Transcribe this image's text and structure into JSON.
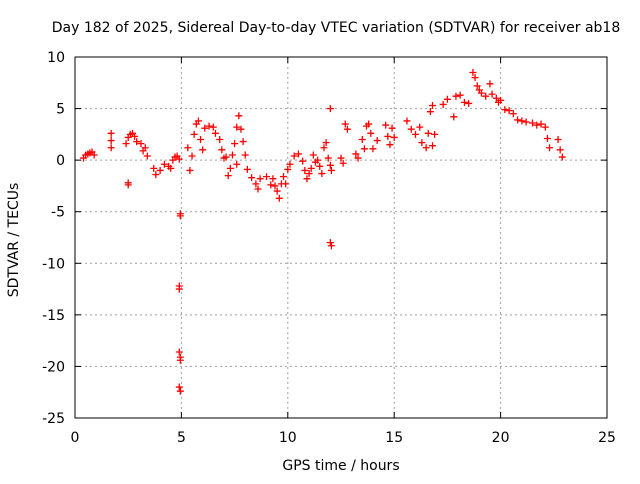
{
  "chart_data": {
    "type": "scatter",
    "title": "Day 182 of 2025, Sidereal Day-to-day VTEC variation (SDTVAR) for receiver ab18",
    "xlabel": "GPS time / hours",
    "ylabel": "SDTVAR / TECUs",
    "xlim": [
      0,
      25
    ],
    "ylim": [
      -25,
      10
    ],
    "xticks": [
      0,
      5,
      10,
      15,
      20,
      25
    ],
    "yticks": [
      10,
      5,
      0,
      -5,
      -10,
      -15,
      -20,
      -25
    ],
    "grid": true,
    "legend": "none",
    "marker": "+",
    "colors": {
      "series": "#ff0000",
      "grid": "#a0a0a0",
      "axes": "#000000"
    },
    "series": [
      {
        "name": "SDTVAR",
        "points": [
          [
            0.4,
            0.2
          ],
          [
            0.5,
            0.5
          ],
          [
            0.6,
            0.6
          ],
          [
            0.7,
            0.7
          ],
          [
            0.8,
            0.8
          ],
          [
            0.9,
            0.5
          ],
          [
            1.7,
            2.6
          ],
          [
            1.7,
            1.9
          ],
          [
            1.7,
            1.2
          ],
          [
            2.4,
            1.6
          ],
          [
            2.5,
            2.2
          ],
          [
            2.6,
            2.5
          ],
          [
            2.7,
            2.6
          ],
          [
            2.8,
            2.3
          ],
          [
            2.9,
            1.8
          ],
          [
            2.5,
            -2.2
          ],
          [
            2.5,
            -2.4
          ],
          [
            3.1,
            1.6
          ],
          [
            3.2,
            0.9
          ],
          [
            3.4,
            0.4
          ],
          [
            3.3,
            1.2
          ],
          [
            3.7,
            -0.8
          ],
          [
            3.8,
            -1.4
          ],
          [
            4.0,
            -1.0
          ],
          [
            4.2,
            -0.4
          ],
          [
            4.4,
            -0.6
          ],
          [
            4.5,
            -0.8
          ],
          [
            4.6,
            0.0
          ],
          [
            4.7,
            0.3
          ],
          [
            4.8,
            0.4
          ],
          [
            4.9,
            0.1
          ],
          [
            4.95,
            -5.2
          ],
          [
            4.95,
            -5.4
          ],
          [
            4.9,
            -12.2
          ],
          [
            4.9,
            -12.5
          ],
          [
            4.9,
            -18.6
          ],
          [
            4.95,
            -19.1
          ],
          [
            4.95,
            -19.4
          ],
          [
            4.9,
            -22.0
          ],
          [
            4.95,
            -22.4
          ],
          [
            5.3,
            1.2
          ],
          [
            5.4,
            -1.0
          ],
          [
            5.5,
            0.4
          ],
          [
            5.6,
            2.5
          ],
          [
            5.7,
            3.5
          ],
          [
            5.8,
            3.8
          ],
          [
            5.9,
            2.0
          ],
          [
            6.0,
            1.0
          ],
          [
            6.1,
            3.1
          ],
          [
            6.3,
            3.3
          ],
          [
            6.5,
            3.2
          ],
          [
            6.6,
            2.6
          ],
          [
            6.8,
            2.0
          ],
          [
            6.9,
            1.0
          ],
          [
            7.0,
            0.2
          ],
          [
            7.1,
            0.3
          ],
          [
            7.2,
            -1.5
          ],
          [
            7.3,
            -0.8
          ],
          [
            7.4,
            0.5
          ],
          [
            7.5,
            1.6
          ],
          [
            7.6,
            3.2
          ],
          [
            7.7,
            4.3
          ],
          [
            7.8,
            3.0
          ],
          [
            7.9,
            1.8
          ],
          [
            8.0,
            0.5
          ],
          [
            7.6,
            -0.4
          ],
          [
            8.1,
            -0.9
          ],
          [
            8.3,
            -1.7
          ],
          [
            8.5,
            -2.3
          ],
          [
            8.6,
            -2.8
          ],
          [
            8.7,
            -1.8
          ],
          [
            9.0,
            -1.6
          ],
          [
            9.2,
            -2.4
          ],
          [
            9.3,
            -1.8
          ],
          [
            9.4,
            -2.5
          ],
          [
            9.5,
            -3.0
          ],
          [
            9.6,
            -3.7
          ],
          [
            9.7,
            -2.3
          ],
          [
            9.8,
            -1.6
          ],
          [
            9.9,
            -2.3
          ],
          [
            10.0,
            -0.9
          ],
          [
            10.1,
            -0.4
          ],
          [
            10.3,
            0.4
          ],
          [
            10.5,
            0.6
          ],
          [
            10.7,
            -0.1
          ],
          [
            10.8,
            -1.0
          ],
          [
            10.9,
            -1.8
          ],
          [
            11.0,
            -1.3
          ],
          [
            11.1,
            -0.8
          ],
          [
            11.2,
            0.5
          ],
          [
            11.3,
            -0.2
          ],
          [
            11.4,
            0.0
          ],
          [
            11.5,
            -0.6
          ],
          [
            11.6,
            -1.3
          ],
          [
            11.7,
            1.2
          ],
          [
            11.8,
            1.7
          ],
          [
            11.9,
            0.2
          ],
          [
            12.0,
            -0.5
          ],
          [
            12.05,
            -1.0
          ],
          [
            12.0,
            5.0
          ],
          [
            12.0,
            -8.0
          ],
          [
            12.05,
            -8.3
          ],
          [
            12.5,
            0.2
          ],
          [
            12.6,
            -0.3
          ],
          [
            12.7,
            3.5
          ],
          [
            12.8,
            3.0
          ],
          [
            13.2,
            0.6
          ],
          [
            13.3,
            0.2
          ],
          [
            13.5,
            2.0
          ],
          [
            13.6,
            1.1
          ],
          [
            13.7,
            3.3
          ],
          [
            13.8,
            3.5
          ],
          [
            13.9,
            2.6
          ],
          [
            14.0,
            1.1
          ],
          [
            14.2,
            1.9
          ],
          [
            14.6,
            3.4
          ],
          [
            14.7,
            2.3
          ],
          [
            14.8,
            1.5
          ],
          [
            14.9,
            3.1
          ],
          [
            15.0,
            2.2
          ],
          [
            15.6,
            3.8
          ],
          [
            15.8,
            3.0
          ],
          [
            16.0,
            2.5
          ],
          [
            16.2,
            3.2
          ],
          [
            16.3,
            1.7
          ],
          [
            16.5,
            1.2
          ],
          [
            16.6,
            2.6
          ],
          [
            16.7,
            4.7
          ],
          [
            16.8,
            5.3
          ],
          [
            16.9,
            2.5
          ],
          [
            16.8,
            1.4
          ],
          [
            17.3,
            5.4
          ],
          [
            17.5,
            5.9
          ],
          [
            17.8,
            4.2
          ],
          [
            17.9,
            6.2
          ],
          [
            18.1,
            6.3
          ],
          [
            18.3,
            5.6
          ],
          [
            18.5,
            5.5
          ],
          [
            18.7,
            8.5
          ],
          [
            18.8,
            8.0
          ],
          [
            18.9,
            7.2
          ],
          [
            19.0,
            6.8
          ],
          [
            19.1,
            6.5
          ],
          [
            19.3,
            6.2
          ],
          [
            19.5,
            7.4
          ],
          [
            19.6,
            6.4
          ],
          [
            19.8,
            6.0
          ],
          [
            19.9,
            5.6
          ],
          [
            20.0,
            5.8
          ],
          [
            20.2,
            4.9
          ],
          [
            20.4,
            4.8
          ],
          [
            20.6,
            4.5
          ],
          [
            20.8,
            3.9
          ],
          [
            21.0,
            3.8
          ],
          [
            21.2,
            3.7
          ],
          [
            21.5,
            3.6
          ],
          [
            21.7,
            3.4
          ],
          [
            21.9,
            3.5
          ],
          [
            22.1,
            3.2
          ],
          [
            22.2,
            2.1
          ],
          [
            22.3,
            1.2
          ],
          [
            22.7,
            2.0
          ],
          [
            22.8,
            1.0
          ],
          [
            22.9,
            0.3
          ]
        ]
      }
    ]
  }
}
